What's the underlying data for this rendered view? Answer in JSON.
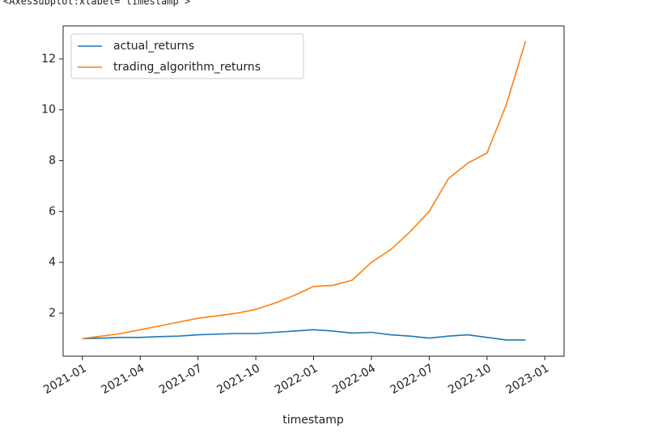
{
  "output_text": "<AxesSubplot:xlabel='timestamp'>",
  "chart_data": {
    "type": "line",
    "x_label": "timestamp",
    "x": [
      "2021-01",
      "2021-02",
      "2021-03",
      "2021-04",
      "2021-05",
      "2021-06",
      "2021-07",
      "2021-08",
      "2021-09",
      "2021-10",
      "2021-11",
      "2021-12",
      "2022-01",
      "2022-02",
      "2022-03",
      "2022-04",
      "2022-05",
      "2022-06",
      "2022-07",
      "2022-08",
      "2022-09",
      "2022-10",
      "2022-11",
      "2022-12"
    ],
    "series": [
      {
        "name": "actual_returns",
        "color": "#1f77b4",
        "values": [
          1.0,
          1.02,
          1.05,
          1.05,
          1.08,
          1.1,
          1.15,
          1.18,
          1.2,
          1.2,
          1.25,
          1.3,
          1.35,
          1.3,
          1.22,
          1.25,
          1.15,
          1.1,
          1.02,
          1.1,
          1.15,
          1.05,
          0.95,
          0.95
        ]
      },
      {
        "name": "trading_algorithm_returns",
        "color": "#ff7f0e",
        "values": [
          1.0,
          1.1,
          1.2,
          1.35,
          1.5,
          1.65,
          1.8,
          1.9,
          2.0,
          2.15,
          2.4,
          2.7,
          3.05,
          3.1,
          3.3,
          4.0,
          4.5,
          5.2,
          6.0,
          7.3,
          7.9,
          8.3,
          10.2,
          12.7
        ]
      }
    ],
    "xlim": [
      "2020-12",
      "2023-02"
    ],
    "xticks": [
      "2021-01",
      "2021-04",
      "2021-07",
      "2021-10",
      "2022-01",
      "2022-04",
      "2022-07",
      "2022-10",
      "2023-01"
    ],
    "ylim": [
      0.31,
      13.3
    ],
    "yticks": [
      2,
      4,
      6,
      8,
      10,
      12
    ],
    "legend": "upper-left"
  }
}
